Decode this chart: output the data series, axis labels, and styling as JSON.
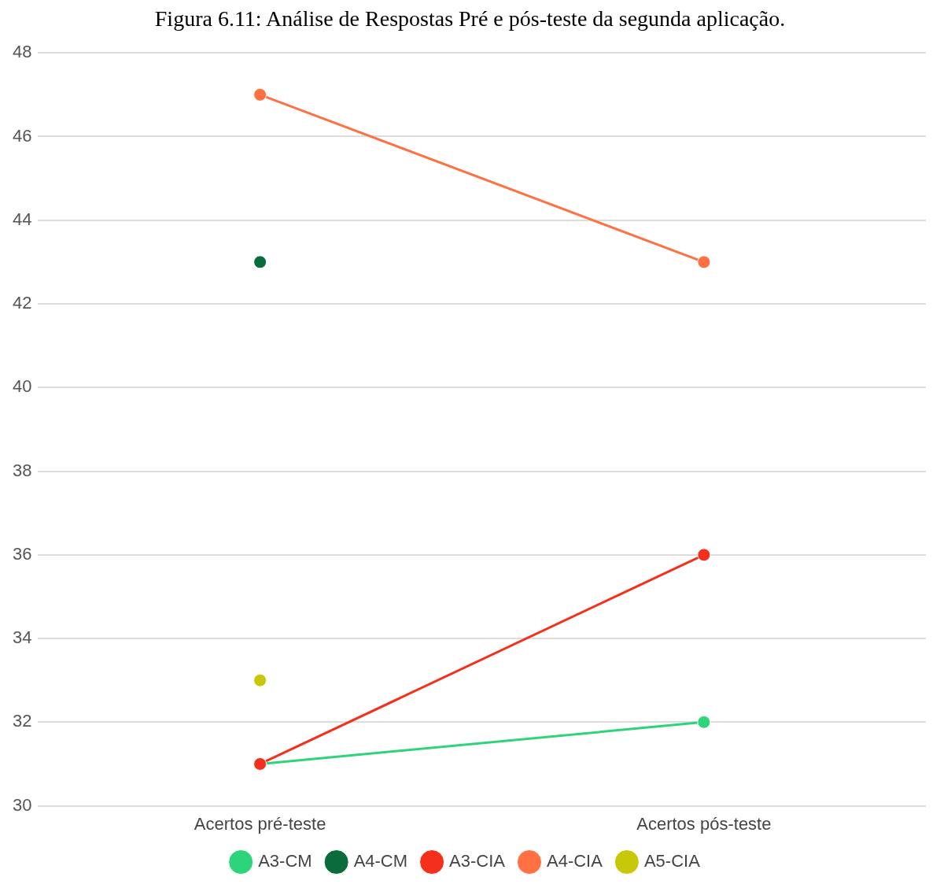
{
  "chart_data": {
    "type": "line",
    "title": "Figura 6.11: Análise de Respostas Pré e pós-teste da segunda aplicação.",
    "categories": [
      "Acertos pré-teste",
      "Acertos pós-teste"
    ],
    "series": [
      {
        "name": "A3-CM",
        "color": "#2ed47a",
        "values": [
          31,
          32
        ]
      },
      {
        "name": "A4-CM",
        "color": "#0b6b3a",
        "values": [
          43,
          null
        ]
      },
      {
        "name": "A3-CIA",
        "color": "#f4301c",
        "values": [
          31,
          36
        ]
      },
      {
        "name": "A4-CIA",
        "color": "#ff7043",
        "values": [
          47,
          43
        ]
      },
      {
        "name": "A5-CIA",
        "color": "#c8c80a",
        "values": [
          33,
          null
        ]
      }
    ],
    "ylim": [
      30,
      48
    ],
    "yticks": [
      30,
      32,
      34,
      36,
      38,
      40,
      42,
      44,
      46,
      48
    ],
    "grid": "y",
    "legend": "bottom",
    "marker": "circle",
    "line_style": "solid"
  }
}
